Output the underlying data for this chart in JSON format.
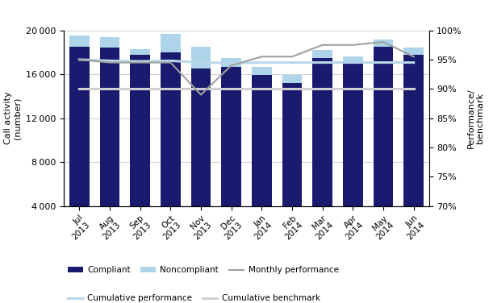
{
  "months": [
    "Jul\n2013",
    "Aug\n2013",
    "Sep\n2013",
    "Oct\n2013",
    "Nov\n2013",
    "Dec\n2013",
    "Jan\n2014",
    "Feb\n2014",
    "Mar\n2014",
    "Apr\n2014",
    "May\n2014",
    "Jun\n2014"
  ],
  "compliant": [
    18500,
    18400,
    17800,
    18000,
    16500,
    16700,
    15950,
    15200,
    17500,
    17200,
    18500,
    17800
  ],
  "noncompliant": [
    1000,
    950,
    500,
    1650,
    2000,
    800,
    700,
    700,
    700,
    450,
    650,
    600
  ],
  "monthly_performance": [
    95.0,
    94.5,
    94.5,
    94.5,
    89.0,
    94.0,
    95.5,
    95.5,
    97.5,
    97.5,
    98.0,
    95.5
  ],
  "cumulative_performance": [
    95.0,
    94.8,
    94.7,
    94.8,
    94.5,
    94.4,
    94.5,
    94.5,
    94.5,
    94.5,
    94.5,
    94.5
  ],
  "cumulative_benchmark": [
    90.0,
    90.0,
    90.0,
    90.0,
    90.0,
    90.0,
    90.0,
    90.0,
    90.0,
    90.0,
    90.0,
    90.0
  ],
  "compliant_color": "#1a1a6e",
  "noncompliant_color": "#add4e8",
  "monthly_perf_color": "#a0a0a0",
  "cumulative_perf_color": "#b8d8ea",
  "cumulative_bench_color": "#d0d0d0",
  "ylim_left": [
    4000,
    20000
  ],
  "ylim_right": [
    70,
    100
  ],
  "yticks_left": [
    4000,
    8000,
    12000,
    16000,
    20000
  ],
  "yticks_right": [
    70,
    75,
    80,
    85,
    90,
    95,
    100
  ],
  "ylabel_left": "Call activity\n(number)",
  "ylabel_right": "Performance/\nbenchmark"
}
